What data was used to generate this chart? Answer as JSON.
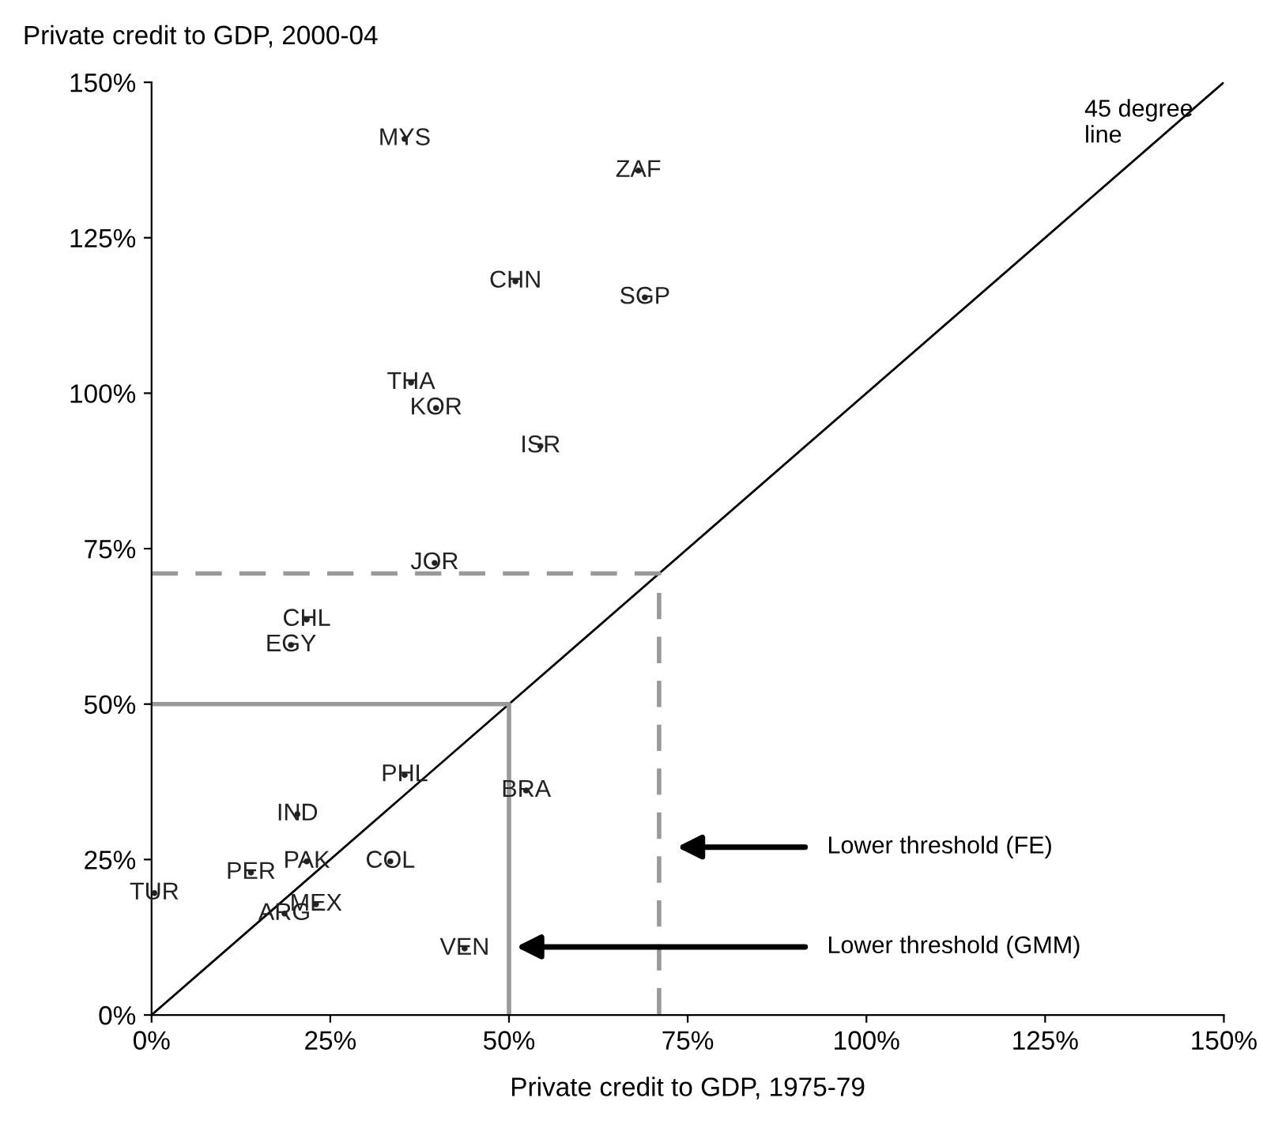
{
  "chart_data": {
    "type": "scatter",
    "xlabel": "Private credit to GDP, 1975-79",
    "ylabel": "Private credit to GDP, 2000-04",
    "xlim": [
      0,
      150
    ],
    "ylim": [
      0,
      150
    ],
    "xticks": [
      {
        "value": 0,
        "label": "0%"
      },
      {
        "value": 25,
        "label": "25%"
      },
      {
        "value": 50,
        "label": "50%"
      },
      {
        "value": 75,
        "label": "75%"
      },
      {
        "value": 100,
        "label": "100%"
      },
      {
        "value": 125,
        "label": "125%"
      },
      {
        "value": 150,
        "label": "150%"
      }
    ],
    "yticks": [
      {
        "value": 0,
        "label": "0%"
      },
      {
        "value": 25,
        "label": "25%"
      },
      {
        "value": 50,
        "label": "50%"
      },
      {
        "value": 75,
        "label": "75%"
      },
      {
        "value": 100,
        "label": "100%"
      },
      {
        "value": 125,
        "label": "125%"
      },
      {
        "value": 150,
        "label": "150%"
      }
    ],
    "grid": false,
    "legend": false,
    "series": [
      {
        "marker": "circle",
        "color": "#222222",
        "x": [
          35.4,
          68.1,
          50.9,
          69.0,
          36.3,
          39.8,
          54.4,
          39.6,
          21.7,
          19.5,
          35.4,
          52.4,
          20.4,
          21.7,
          33.4,
          13.9,
          0.4,
          23.0,
          18.6,
          43.8
        ],
        "values": [
          140.9,
          135.8,
          118.0,
          115.4,
          101.7,
          97.6,
          91.5,
          72.7,
          63.6,
          59.5,
          38.6,
          36.1,
          32.3,
          24.7,
          24.7,
          22.9,
          19.6,
          17.8,
          16.3,
          10.7
        ],
        "value_labels": [
          "MYS",
          "ZAF",
          "CHN",
          "SGP",
          "THA",
          "KOR",
          "ISR",
          "JOR",
          "CHL",
          "EGY",
          "PHL",
          "BRA",
          "IND",
          "PAK",
          "COL",
          "PER",
          "TUR",
          "MEX",
          "ARG",
          "VEN"
        ]
      },
      {
        "type": "line",
        "color": "#000000",
        "line_style": "solid",
        "x": [
          0,
          150
        ],
        "values": [
          0,
          150
        ]
      },
      {
        "type": "line",
        "color": "#999999",
        "line_style": "dashed",
        "x": [
          0,
          71,
          71
        ],
        "values": [
          71,
          71,
          0
        ]
      },
      {
        "type": "line",
        "color": "#999999",
        "line_style": "solid",
        "x": [
          0,
          50,
          50
        ],
        "values": [
          50,
          50,
          0
        ]
      }
    ],
    "annotations": [
      "45 degree\nline",
      "Lower threshold (FE)",
      "Lower threshold (GMM)"
    ]
  }
}
